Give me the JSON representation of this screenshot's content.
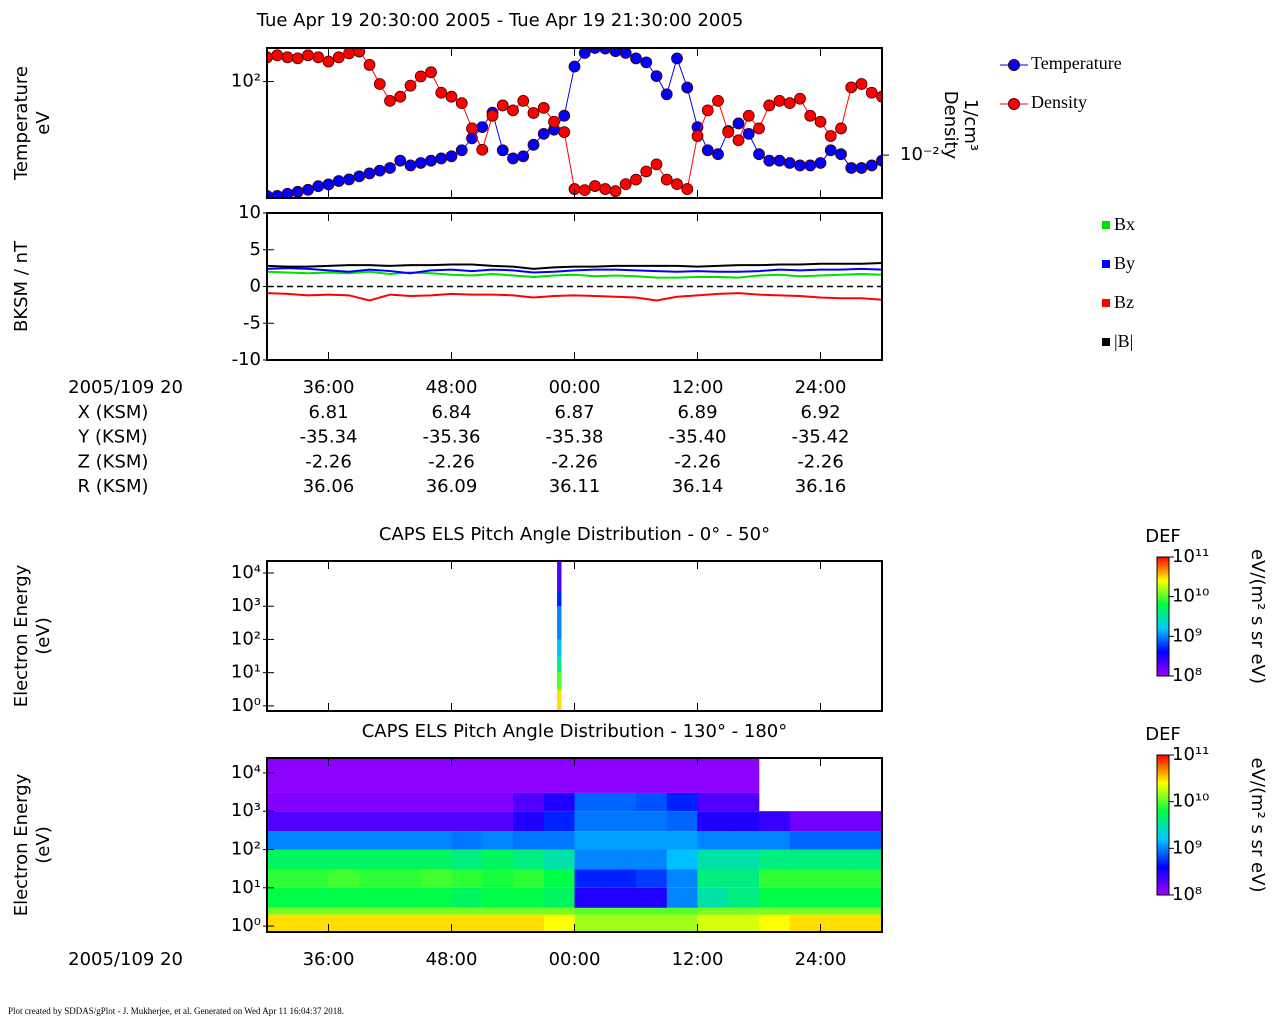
{
  "title": "Tue Apr 19 20:30:00 2005 - Tue Apr 19 21:30:00 2005",
  "footer": "Plot created by SDDAS/gPlot - J. Mukherjee, et al.  Generated on Wed Apr 11 16:04:37 2018.",
  "ephemeris": {
    "rows": [
      {
        "name": "X (KSM)",
        "values": [
          "6.81",
          "6.84",
          "6.87",
          "6.89",
          "6.92"
        ]
      },
      {
        "name": "Y (KSM)",
        "values": [
          "-35.34",
          "-35.36",
          "-35.38",
          "-35.40",
          "-35.42"
        ]
      },
      {
        "name": "Z (KSM)",
        "values": [
          "-2.26",
          "-2.26",
          "-2.26",
          "-2.26",
          "-2.26"
        ]
      },
      {
        "name": "R (KSM)",
        "values": [
          "36.06",
          "36.09",
          "36.11",
          "36.14",
          "36.16"
        ]
      }
    ]
  },
  "chart_data": [
    {
      "type": "line",
      "ylabel": [
        "Temperature",
        "eV"
      ],
      "y2label": [
        "Density",
        "1/cm³"
      ],
      "xlim": [
        30,
        90
      ],
      "xticks": [
        36,
        48,
        60,
        72,
        84
      ],
      "xtick_labels": false,
      "ylog": true,
      "ylim": [
        13,
        180
      ],
      "yticks": [
        {
          "value": 100,
          "label": "10²"
        }
      ],
      "y2log": true,
      "y2lim": [
        0.0047,
        0.066
      ],
      "y2ticks": [
        {
          "value": 0.01,
          "label": "10⁻²"
        }
      ],
      "markers": true,
      "legend": "right",
      "x": [
        30,
        31,
        32,
        33,
        34,
        35,
        36,
        37,
        38,
        39,
        40,
        41,
        42,
        43,
        44,
        45,
        46,
        47,
        48,
        49,
        50,
        51,
        52,
        53,
        54,
        55,
        56,
        57,
        58,
        59,
        60,
        61,
        62,
        63,
        64,
        65,
        66,
        67,
        68,
        69,
        70,
        71,
        72,
        73,
        74,
        75,
        76,
        77,
        78,
        79,
        80,
        81,
        82,
        83,
        84,
        85,
        86,
        87,
        88,
        89,
        90
      ],
      "series": [
        {
          "name": "Temperature",
          "color": "#0000ff",
          "values": [
            13.5,
            13.5,
            14,
            14.5,
            15,
            16,
            16.5,
            17.5,
            18,
            19,
            20,
            21,
            22,
            25,
            23,
            24,
            25,
            26,
            27,
            30,
            37,
            45,
            58,
            30,
            26,
            27,
            33,
            40,
            43,
            55,
            130,
            165,
            180,
            178,
            170,
            165,
            150,
            140,
            110,
            80,
            150,
            90,
            45,
            30,
            28,
            42,
            48,
            40,
            28,
            25,
            25,
            24,
            23,
            23,
            24,
            30,
            28,
            22,
            22,
            23,
            25
          ]
        },
        {
          "name": "Density",
          "color": "#ff0000",
          "axis": "y2",
          "values": [
            0.056,
            0.058,
            0.056,
            0.055,
            0.058,
            0.056,
            0.052,
            0.056,
            0.06,
            0.062,
            0.049,
            0.035,
            0.026,
            0.028,
            0.034,
            0.04,
            0.043,
            0.03,
            0.028,
            0.025,
            0.016,
            0.011,
            0.02,
            0.024,
            0.022,
            0.026,
            0.021,
            0.023,
            0.018,
            0.015,
            0.0055,
            0.0054,
            0.0058,
            0.0055,
            0.0053,
            0.006,
            0.0065,
            0.0075,
            0.0085,
            0.0065,
            0.006,
            0.0055,
            0.014,
            0.022,
            0.026,
            0.015,
            0.013,
            0.02,
            0.016,
            0.024,
            0.026,
            0.025,
            0.027,
            0.02,
            0.018,
            0.014,
            0.016,
            0.033,
            0.035,
            0.03,
            0.028
          ]
        }
      ]
    },
    {
      "type": "line",
      "ylabel": [
        "BKSM / nT"
      ],
      "xlabel": "2005/109 20",
      "xlim": [
        30,
        90
      ],
      "xticks": [
        {
          "value": 36,
          "label": "36:00"
        },
        {
          "value": 48,
          "label": "48:00"
        },
        {
          "value": 60,
          "label": "00:00"
        },
        {
          "value": 72,
          "label": "12:00"
        },
        {
          "value": 84,
          "label": "24:00"
        }
      ],
      "ylim": [
        -10,
        10
      ],
      "yticks": [
        10,
        5,
        0,
        -5,
        -10
      ],
      "zero_line": true,
      "markers": false,
      "legend": "right",
      "x": [
        30,
        32,
        34,
        36,
        38,
        40,
        42,
        44,
        46,
        48,
        50,
        52,
        54,
        56,
        58,
        60,
        62,
        64,
        66,
        68,
        70,
        72,
        74,
        76,
        78,
        80,
        82,
        84,
        86,
        88,
        90
      ],
      "series": [
        {
          "name": "Bx",
          "color": "#00e000",
          "values": [
            2.0,
            1.9,
            1.8,
            1.9,
            1.8,
            2.0,
            1.7,
            1.9,
            1.8,
            1.6,
            1.5,
            1.7,
            1.5,
            1.3,
            1.5,
            1.6,
            1.4,
            1.5,
            1.4,
            1.2,
            1.2,
            1.3,
            1.3,
            1.2,
            1.5,
            1.6,
            1.4,
            1.5,
            1.6,
            1.7,
            1.6
          ]
        },
        {
          "name": "By",
          "color": "#0000ff",
          "values": [
            2.4,
            2.5,
            2.4,
            2.2,
            2.0,
            2.3,
            2.1,
            1.8,
            2.2,
            2.3,
            2.1,
            2.3,
            2.2,
            1.9,
            2.0,
            2.2,
            2.3,
            2.3,
            2.2,
            2.1,
            2.0,
            2.1,
            2.0,
            2.0,
            2.1,
            2.3,
            2.2,
            2.3,
            2.3,
            2.4,
            2.3
          ]
        },
        {
          "name": "Bz",
          "color": "#ff0000",
          "values": [
            -0.9,
            -1.0,
            -1.2,
            -1.1,
            -1.2,
            -1.9,
            -1.1,
            -1.3,
            -1.2,
            -1.0,
            -1.1,
            -1.1,
            -1.2,
            -1.5,
            -1.3,
            -1.2,
            -1.3,
            -1.4,
            -1.5,
            -1.9,
            -1.4,
            -1.2,
            -1.0,
            -0.9,
            -1.1,
            -1.2,
            -1.3,
            -1.5,
            -1.6,
            -1.6,
            -1.8
          ]
        },
        {
          "name": "|B|",
          "color": "#000000",
          "values": [
            2.8,
            2.7,
            2.7,
            2.8,
            2.9,
            2.9,
            2.8,
            2.9,
            2.9,
            3.0,
            3.0,
            2.8,
            2.7,
            2.4,
            2.6,
            2.7,
            2.7,
            2.8,
            2.8,
            2.8,
            2.8,
            2.7,
            2.8,
            2.9,
            2.9,
            3.0,
            3.0,
            3.1,
            3.1,
            3.1,
            3.2
          ]
        }
      ]
    },
    {
      "type": "heatmap",
      "title": "CAPS ELS Pitch Angle Distribution - 0° - 50°",
      "ylabel": [
        "Electron Energy",
        "(eV)"
      ],
      "xlim": [
        30,
        90
      ],
      "xticks": [
        36,
        48,
        60,
        72,
        84
      ],
      "xtick_labels": false,
      "ylog": true,
      "ylim": [
        0.7,
        23000
      ],
      "yticks": [
        {
          "value": 1,
          "label": "10⁰"
        },
        {
          "value": 10,
          "label": "10¹"
        },
        {
          "value": 100,
          "label": "10²"
        },
        {
          "value": 1000,
          "label": "10³"
        },
        {
          "value": 10000,
          "label": "10⁴"
        }
      ],
      "x_bins": [
        30,
        58.3,
        58.7,
        90
      ],
      "y_bins": [
        0.7,
        3,
        10,
        30,
        100,
        1000,
        3000,
        23000
      ],
      "z": [
        [
          null,
          30000000000.0,
          null
        ],
        [
          null,
          10000000000.0,
          null
        ],
        [
          null,
          4000000000.0,
          null
        ],
        [
          null,
          1500000000.0,
          null
        ],
        [
          null,
          1000000000.0,
          null
        ],
        [
          null,
          500000000.0,
          null
        ],
        [
          null,
          200000000.0,
          null
        ]
      ],
      "colormap": [
        "#a000ff",
        "#0000ff",
        "#00c8ff",
        "#00ff40",
        "#ffff00",
        "#ff0000"
      ],
      "colorbar": {
        "label": "DEF",
        "unit": "eV/(m² s sr eV)",
        "lim": [
          100000000.0,
          100000000000.0
        ],
        "ticks": [
          {
            "value": 100000000.0,
            "label": "10⁸"
          },
          {
            "value": 1000000000.0,
            "label": "10⁹"
          },
          {
            "value": 10000000000.0,
            "label": "10¹⁰"
          },
          {
            "value": 100000000000.0,
            "label": "10¹¹"
          }
        ]
      }
    },
    {
      "type": "heatmap",
      "title": "CAPS ELS Pitch Angle Distribution - 130° - 180°",
      "ylabel": [
        "Electron Energy",
        "(eV)"
      ],
      "xlabel": "2005/109 20",
      "xlim": [
        30,
        90
      ],
      "xticks": [
        {
          "value": 36,
          "label": "36:00"
        },
        {
          "value": 48,
          "label": "48:00"
        },
        {
          "value": 60,
          "label": "00:00"
        },
        {
          "value": 72,
          "label": "12:00"
        },
        {
          "value": 84,
          "label": "24:00"
        }
      ],
      "ylog": true,
      "ylim": [
        0.7,
        24500
      ],
      "yticks": [
        {
          "value": 1,
          "label": "10⁰"
        },
        {
          "value": 10,
          "label": "10¹"
        },
        {
          "value": 100,
          "label": "10²"
        },
        {
          "value": 1000,
          "label": "10³"
        },
        {
          "value": 10000,
          "label": "10⁴"
        }
      ],
      "x_bins": [
        30,
        33,
        36,
        39,
        42,
        45,
        48,
        51,
        54,
        57,
        60,
        63,
        66,
        69,
        72,
        75,
        78,
        81,
        84,
        87,
        90
      ],
      "y_bins": [
        0.7,
        2,
        3,
        10,
        30,
        100,
        300,
        1000,
        3000,
        24500
      ],
      "z": [
        [
          30000000000.0,
          30000000000.0,
          30000000000.0,
          30000000000.0,
          30000000000.0,
          30000000000.0,
          30000000000.0,
          30000000000.0,
          30000000000.0,
          25000000000.0,
          15000000000.0,
          15000000000.0,
          15000000000.0,
          15000000000.0,
          20000000000.0,
          20000000000.0,
          25000000000.0,
          30000000000.0,
          30000000000.0,
          30000000000.0
        ],
        [
          12000000000.0,
          12000000000.0,
          12000000000.0,
          12000000000.0,
          12000000000.0,
          12000000000.0,
          12000000000.0,
          12000000000.0,
          12000000000.0,
          12000000000.0,
          10000000000.0,
          10000000000.0,
          10000000000.0,
          10000000000.0,
          12000000000.0,
          12000000000.0,
          12000000000.0,
          12000000000.0,
          12000000000.0,
          12000000000.0
        ],
        [
          6000000000.0,
          6000000000.0,
          6000000000.0,
          6000000000.0,
          6000000000.0,
          6000000000.0,
          5000000000.0,
          6000000000.0,
          6000000000.0,
          5000000000.0,
          300000000.0,
          300000000.0,
          300000000.0,
          1000000000.0,
          3000000000.0,
          4000000000.0,
          6000000000.0,
          6000000000.0,
          6000000000.0,
          6000000000.0
        ],
        [
          8000000000.0,
          8000000000.0,
          9000000000.0,
          8000000000.0,
          8000000000.0,
          9000000000.0,
          8000000000.0,
          7000000000.0,
          8000000000.0,
          6000000000.0,
          500000000.0,
          500000000.0,
          600000000.0,
          1000000000.0,
          4000000000.0,
          4000000000.0,
          8000000000.0,
          8000000000.0,
          8000000000.0,
          8000000000.0
        ],
        [
          5000000000.0,
          5000000000.0,
          5000000000.0,
          5000000000.0,
          5000000000.0,
          5000000000.0,
          4000000000.0,
          5000000000.0,
          4000000000.0,
          3000000000.0,
          1000000000.0,
          1000000000.0,
          1000000000.0,
          1500000000.0,
          3000000000.0,
          3000000000.0,
          4000000000.0,
          4000000000.0,
          4000000000.0,
          4000000000.0
        ],
        [
          1000000000.0,
          1000000000.0,
          1000000000.0,
          1000000000.0,
          1000000000.0,
          1000000000.0,
          900000000.0,
          1000000000.0,
          900000000.0,
          900000000.0,
          1200000000.0,
          1200000000.0,
          1200000000.0,
          1200000000.0,
          1000000000.0,
          1000000000.0,
          1000000000.0,
          800000000.0,
          800000000.0,
          800000000.0
        ],
        [
          200000000.0,
          200000000.0,
          200000000.0,
          200000000.0,
          200000000.0,
          200000000.0,
          200000000.0,
          200000000.0,
          300000000.0,
          500000000.0,
          900000000.0,
          900000000.0,
          900000000.0,
          800000000.0,
          300000000.0,
          300000000.0,
          250000000.0,
          150000000.0,
          150000000.0,
          150000000.0
        ],
        [
          130000000.0,
          130000000.0,
          130000000.0,
          130000000.0,
          130000000.0,
          130000000.0,
          130000000.0,
          130000000.0,
          200000000.0,
          300000000.0,
          800000000.0,
          800000000.0,
          700000000.0,
          500000000.0,
          200000000.0,
          200000000.0,
          null,
          null,
          null,
          null
        ],
        [
          120000000.0,
          120000000.0,
          120000000.0,
          120000000.0,
          120000000.0,
          120000000.0,
          120000000.0,
          120000000.0,
          120000000.0,
          120000000.0,
          120000000.0,
          120000000.0,
          120000000.0,
          120000000.0,
          120000000.0,
          120000000.0,
          null,
          null,
          null,
          null
        ]
      ],
      "colormap": [
        "#a000ff",
        "#0000ff",
        "#00c8ff",
        "#00ff40",
        "#ffff00",
        "#ff0000"
      ],
      "colorbar": {
        "label": "DEF",
        "unit": "eV/(m² s sr eV)",
        "lim": [
          100000000.0,
          100000000000.0
        ],
        "ticks": [
          {
            "value": 100000000.0,
            "label": "10⁸"
          },
          {
            "value": 1000000000.0,
            "label": "10⁹"
          },
          {
            "value": 10000000000.0,
            "label": "10¹⁰"
          },
          {
            "value": 100000000000.0,
            "label": "10¹¹"
          }
        ]
      }
    }
  ]
}
